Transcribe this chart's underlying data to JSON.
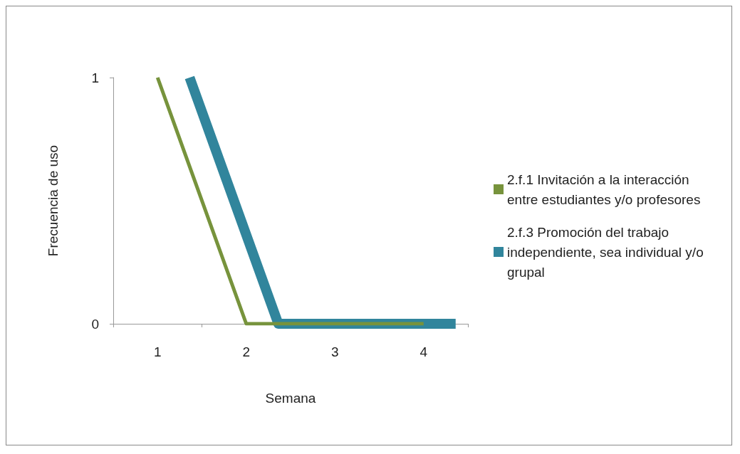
{
  "chart_data": {
    "type": "line",
    "xlabel": "Semana",
    "ylabel": "Frecuencia de uso",
    "categories": [
      "1",
      "2",
      "3",
      "4"
    ],
    "series": [
      {
        "name": "2.f.1 Invitación a la interacción entre estudiantes y/o profesores",
        "color": "#77933c",
        "values": [
          1,
          0,
          0,
          0
        ]
      },
      {
        "name": "2.f.3 Promoción del trabajo independiente, sea individual y/o grupal",
        "color": "#31859c",
        "values": [
          1,
          0,
          0,
          0
        ]
      }
    ],
    "ylim": [
      0,
      1
    ],
    "yticks": [
      0,
      1
    ],
    "grid": false,
    "legend": "right",
    "marker": "none",
    "line_style": "solid"
  }
}
